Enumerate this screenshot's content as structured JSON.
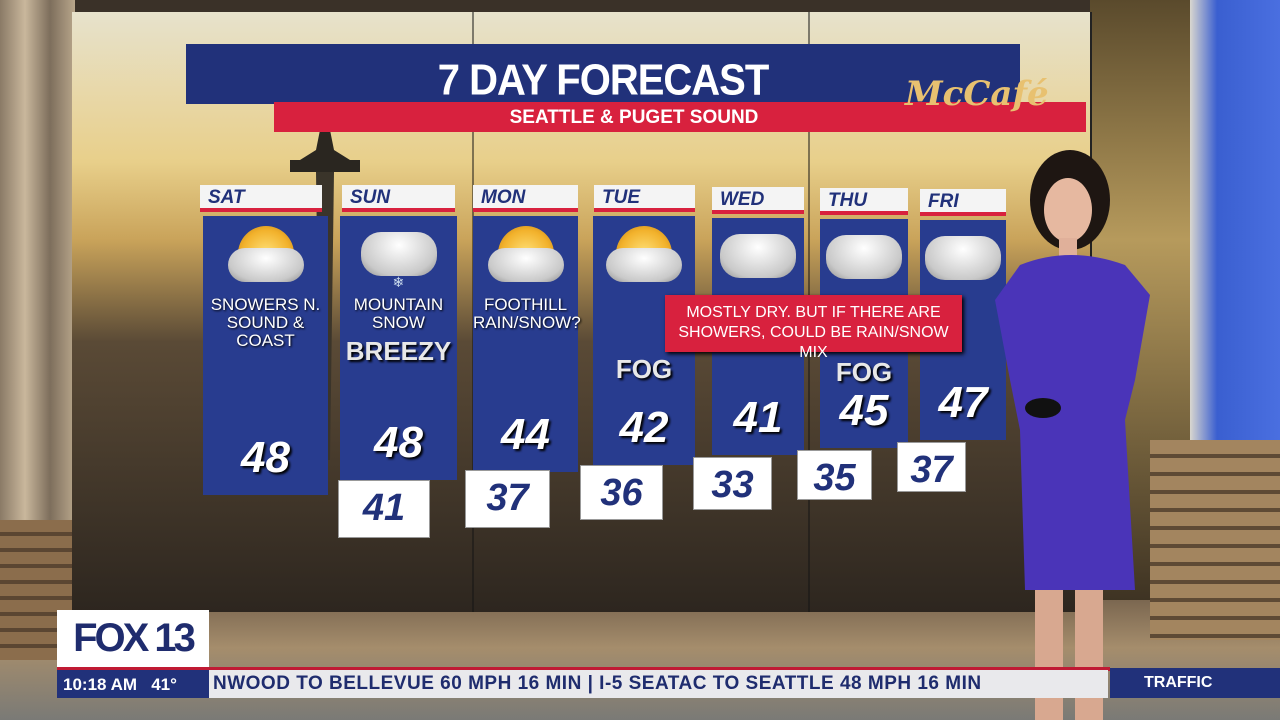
{
  "graphic": {
    "title": "7 DAY FORECAST",
    "subtitle": "SEATTLE & PUGET SOUND",
    "sponsor": "McCafé",
    "note": "MOSTLY DRY. BUT IF THERE ARE SHOWERS, COULD BE RAIN/SNOW MIX",
    "colors": {
      "navy": "#283c8f",
      "red": "#d8213e",
      "white": "#f4f4f4"
    },
    "days": [
      {
        "day": "SAT",
        "icon": "partly-sunny-icon",
        "condition": "SNOWERS N. SOUND & COAST",
        "tag": "",
        "high": "48",
        "low": ""
      },
      {
        "day": "SUN",
        "icon": "snow-cloud-icon",
        "condition": "MOUNTAIN SNOW",
        "tag": "BREEZY",
        "high": "48",
        "low": "41"
      },
      {
        "day": "MON",
        "icon": "partly-sunny-icon",
        "condition": "FOOTHILL RAIN/SNOW?",
        "tag": "",
        "high": "44",
        "low": "37"
      },
      {
        "day": "TUE",
        "icon": "partly-sunny-icon",
        "condition": "",
        "tag": "FOG",
        "high": "42",
        "low": "36"
      },
      {
        "day": "WED",
        "icon": "cloud-icon",
        "condition": "",
        "tag": "",
        "high": "41",
        "low": "33"
      },
      {
        "day": "THU",
        "icon": "cloud-icon",
        "condition": "",
        "tag": "FOG",
        "high": "45",
        "low": "35"
      },
      {
        "day": "FRI",
        "icon": "cloud-icon",
        "condition": "",
        "tag": "",
        "high": "47",
        "low": "37"
      }
    ]
  },
  "lower_third": {
    "logo": "FOX 13",
    "time": "10:18 AM",
    "temp": "41°",
    "crawl": "NWOOD TO BELLEVUE 60 MPH 16 MIN | I-5 SEATAC TO SEATTLE 48 MPH 16 MIN",
    "segment": "TRAFFIC"
  }
}
